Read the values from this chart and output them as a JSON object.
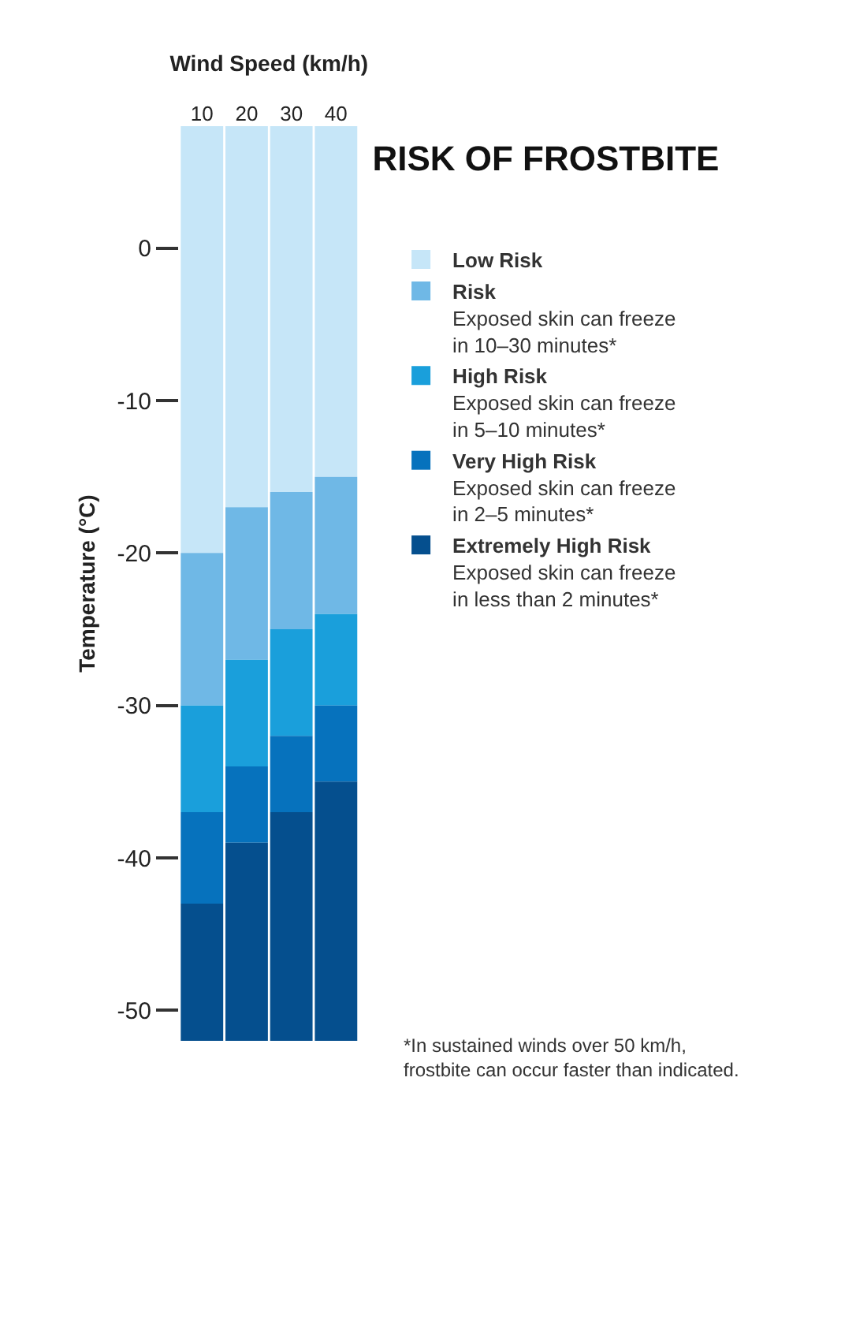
{
  "chart_data": {
    "type": "bar",
    "title": "RISK OF FROSTBITE",
    "xlabel": "Wind Speed (km/h)",
    "ylabel": "Temperature (°C)",
    "categories": [
      "10",
      "20",
      "30",
      "40"
    ],
    "series": [
      {
        "name": "Low Risk",
        "color": "#c6e6f8",
        "base": [
          -20,
          -17,
          -16,
          -15
        ],
        "values": [
          28,
          25,
          24,
          23
        ]
      },
      {
        "name": "Risk",
        "color": "#6fb8e6",
        "base": [
          -30,
          -27,
          -25,
          -24
        ],
        "values": [
          10,
          10,
          9,
          9
        ]
      },
      {
        "name": "High Risk",
        "color": "#1a9fdb",
        "base": [
          -37,
          -34,
          -32,
          -30
        ],
        "values": [
          7,
          7,
          7,
          6
        ]
      },
      {
        "name": "Very High Risk",
        "color": "#0672bd",
        "base": [
          -43,
          -39,
          -37,
          -35
        ],
        "values": [
          6,
          5,
          5,
          5
        ]
      },
      {
        "name": "Extremely High Risk",
        "color": "#054f8e",
        "base": [
          -52,
          -52,
          -52,
          -52
        ],
        "values": [
          9,
          13,
          15,
          17
        ]
      }
    ],
    "ylim": [
      -52,
      8
    ],
    "yticks": [
      0,
      -10,
      -20,
      -30,
      -40,
      -50
    ],
    "grid": false,
    "legend": "right",
    "annotations": [
      "Exposed skin can freeze\nin 10–30 minutes*",
      "Exposed skin can freeze\nin 5–10 minutes*",
      "Exposed skin can freeze\nin 2–5 minutes*",
      "Exposed skin can freeze\nin less than 2 minutes*",
      "*In sustained winds over 50 km/h,\nfrostbite can occur faster than indicated."
    ]
  }
}
